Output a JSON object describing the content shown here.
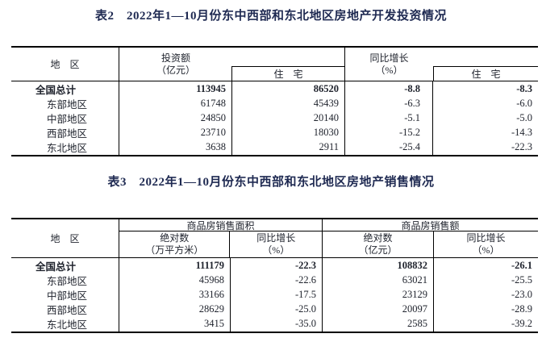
{
  "page": {
    "background": "#ffffff",
    "text_color": "#20242e",
    "title_color": "#1f2a52",
    "border_color": "#000000"
  },
  "table2": {
    "title": "表2　2022年1—10月份东中西部和东北地区房地产开发投资情况",
    "header": {
      "region": "地　区",
      "invest_line1": "投资额",
      "invest_line2": "（亿元）",
      "invest_sub": "住　宅",
      "growth_line1": "同比增长",
      "growth_line2": "（%）",
      "growth_sub": "住　宅"
    },
    "rows": [
      {
        "region": "全国总计",
        "invest": "113945",
        "invest_res": "86520",
        "growth": "-8.8",
        "growth_res": "-8.3"
      },
      {
        "region": "东部地区",
        "invest": "61748",
        "invest_res": "45439",
        "growth": "-6.3",
        "growth_res": "-6.0"
      },
      {
        "region": "中部地区",
        "invest": "24850",
        "invest_res": "20140",
        "growth": "-5.1",
        "growth_res": "-5.0"
      },
      {
        "region": "西部地区",
        "invest": "23710",
        "invest_res": "18030",
        "growth": "-15.2",
        "growth_res": "-14.3"
      },
      {
        "region": "东北地区",
        "invest": "3638",
        "invest_res": "2911",
        "growth": "-25.4",
        "growth_res": "-22.3"
      }
    ]
  },
  "table3": {
    "title": "表3　2022年1—10月份东中西部和东北地区房地产销售情况",
    "header": {
      "region": "地　区",
      "area_group": "商品房销售面积",
      "area_abs_line1": "绝对数",
      "area_abs_line2": "（万平方米）",
      "area_growth_line1": "同比增长",
      "area_growth_line2": "（%）",
      "sales_group": "商品房销售额",
      "sales_abs_line1": "绝对数",
      "sales_abs_line2": "（亿元）",
      "sales_growth_line1": "同比增长",
      "sales_growth_line2": "（%）"
    },
    "rows": [
      {
        "region": "全国总计",
        "area": "111179",
        "area_growth": "-22.3",
        "sales": "108832",
        "sales_growth": "-26.1"
      },
      {
        "region": "东部地区",
        "area": "45968",
        "area_growth": "-22.6",
        "sales": "63021",
        "sales_growth": "-25.5"
      },
      {
        "region": "中部地区",
        "area": "33166",
        "area_growth": "-17.5",
        "sales": "23129",
        "sales_growth": "-23.0"
      },
      {
        "region": "西部地区",
        "area": "28629",
        "area_growth": "-25.0",
        "sales": "20097",
        "sales_growth": "-28.9"
      },
      {
        "region": "东北地区",
        "area": "3415",
        "area_growth": "-35.0",
        "sales": "2585",
        "sales_growth": "-39.2"
      }
    ]
  }
}
